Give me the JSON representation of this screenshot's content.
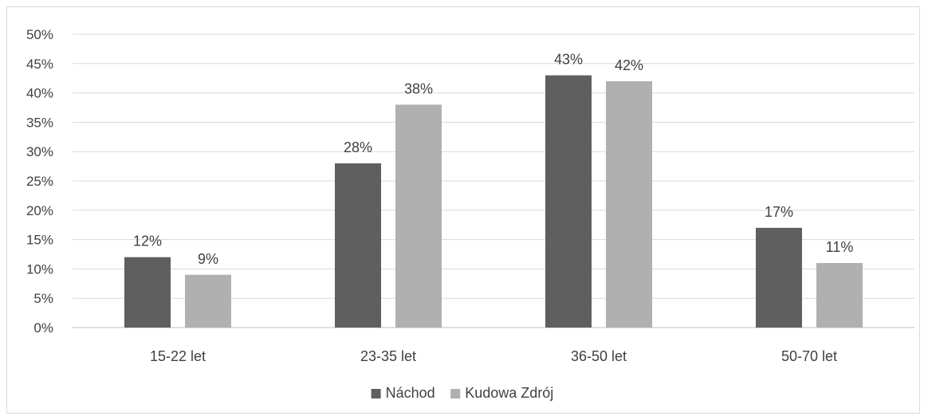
{
  "chart_data": {
    "type": "bar",
    "title": "",
    "xlabel": "",
    "ylabel": "",
    "categories": [
      "15-22 let",
      "23-35 let",
      "36-50 let",
      "50-70 let"
    ],
    "series": [
      {
        "name": "Náchod",
        "values": [
          12,
          28,
          43,
          17
        ],
        "labels": [
          "12%",
          "28%",
          "43%",
          "17%"
        ],
        "color": "#5f5f5f"
      },
      {
        "name": "Kudowa Zdrój",
        "values": [
          9,
          38,
          42,
          11
        ],
        "labels": [
          "9%",
          "38%",
          "42%",
          "11%"
        ],
        "color": "#b0b0b0"
      }
    ],
    "ylim": [
      0,
      50
    ],
    "yticks": [
      "0%",
      "5%",
      "10%",
      "15%",
      "20%",
      "25%",
      "30%",
      "35%",
      "40%",
      "45%",
      "50%"
    ],
    "grid": true,
    "legend_position": "bottom-center"
  }
}
